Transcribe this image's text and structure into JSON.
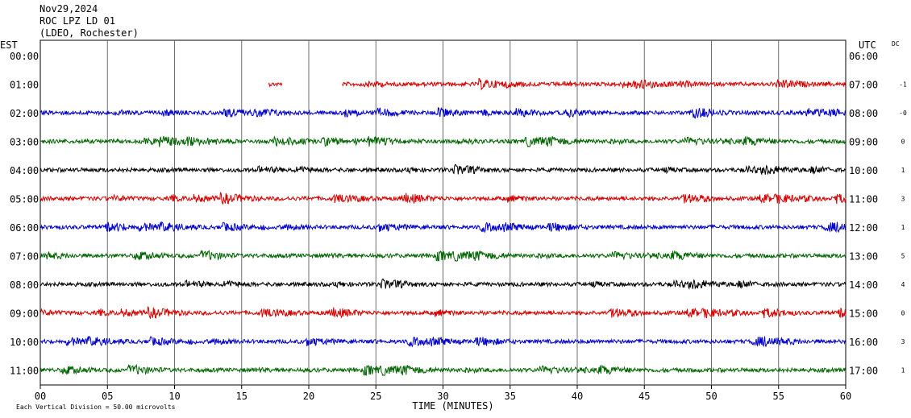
{
  "header": {
    "date": "Nov29,2024",
    "station": "ROC LPZ LD 01",
    "network": "(LDEO, Rochester)"
  },
  "chart_data": {
    "type": "line",
    "left_zone_label": "EST",
    "right_zone_label": "UTC",
    "dc_label": "DC",
    "xlabel": "TIME (MINUTES)",
    "xlim": [
      0,
      60
    ],
    "xticks": [
      "00",
      "05",
      "10",
      "15",
      "20",
      "25",
      "30",
      "35",
      "40",
      "45",
      "50",
      "55",
      "60"
    ],
    "grid": true,
    "footer": "Each Vertical Division =   50.00 microvolts",
    "trace_colors": [
      "#d40000",
      "#0000c8",
      "#006400",
      "#000000"
    ],
    "rows": [
      {
        "est": "00:00",
        "utc": "06:00",
        "dc": "",
        "color": "",
        "segments": []
      },
      {
        "est": "01:00",
        "utc": "07:00",
        "dc": "-1",
        "color": "#d40000",
        "segments": [
          [
            17,
            18
          ],
          [
            22.5,
            60
          ]
        ]
      },
      {
        "est": "02:00",
        "utc": "08:00",
        "dc": "-0",
        "color": "#0000c8",
        "segments": [
          [
            0,
            60
          ]
        ]
      },
      {
        "est": "03:00",
        "utc": "09:00",
        "dc": "0",
        "color": "#006400",
        "segments": [
          [
            0,
            60
          ]
        ]
      },
      {
        "est": "04:00",
        "utc": "10:00",
        "dc": "1",
        "color": "#000000",
        "segments": [
          [
            0,
            60
          ]
        ]
      },
      {
        "est": "05:00",
        "utc": "11:00",
        "dc": "3",
        "color": "#d40000",
        "segments": [
          [
            0,
            60
          ]
        ]
      },
      {
        "est": "06:00",
        "utc": "12:00",
        "dc": "1",
        "color": "#0000c8",
        "segments": [
          [
            0,
            60
          ]
        ]
      },
      {
        "est": "07:00",
        "utc": "13:00",
        "dc": "5",
        "color": "#006400",
        "segments": [
          [
            0,
            60
          ]
        ]
      },
      {
        "est": "08:00",
        "utc": "14:00",
        "dc": "4",
        "color": "#000000",
        "segments": [
          [
            0,
            60
          ]
        ]
      },
      {
        "est": "09:00",
        "utc": "15:00",
        "dc": "0",
        "color": "#d40000",
        "segments": [
          [
            0,
            60
          ]
        ]
      },
      {
        "est": "10:00",
        "utc": "16:00",
        "dc": "3",
        "color": "#0000c8",
        "segments": [
          [
            0,
            60
          ]
        ]
      },
      {
        "est": "11:00",
        "utc": "17:00",
        "dc": "1",
        "color": "#006400",
        "segments": [
          [
            0,
            60
          ]
        ]
      }
    ]
  }
}
